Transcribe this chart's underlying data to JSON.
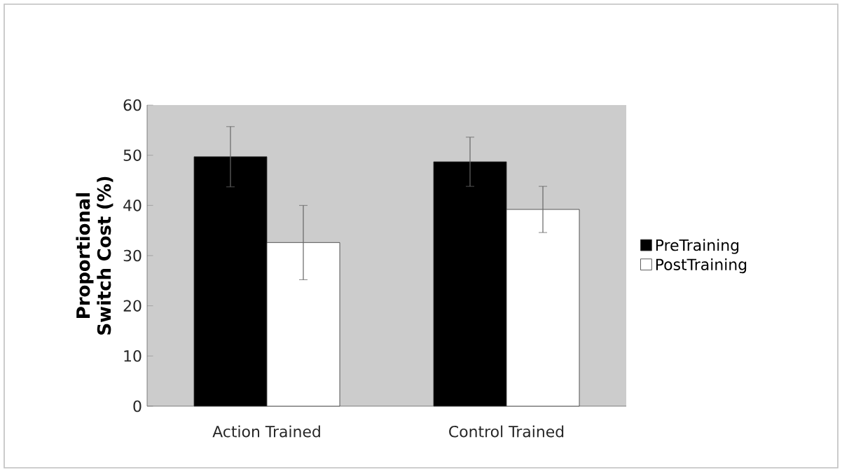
{
  "chart_data": {
    "type": "bar",
    "ylabel": "Proportional Switch Cost (%)",
    "categories": [
      "Action Trained",
      "Control Trained"
    ],
    "series": [
      {
        "name": "PreTraining",
        "color": "#000000",
        "values": [
          49.7,
          48.7
        ],
        "errors": [
          6,
          4.9
        ]
      },
      {
        "name": "PostTraining",
        "color": "#ffffff",
        "values": [
          32.6,
          39.2
        ],
        "errors": [
          7.4,
          4.6
        ]
      }
    ],
    "ylim": [
      0,
      60
    ],
    "yticks": [
      0,
      10,
      20,
      30,
      40,
      50,
      60
    ],
    "legend": "right",
    "grid": false
  }
}
